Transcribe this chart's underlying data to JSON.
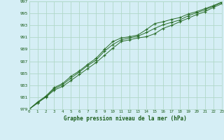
{
  "xlabel": "Graphe pression niveau de la mer (hPa)",
  "ylim": [
    979,
    997
  ],
  "xlim": [
    0,
    23
  ],
  "yticks": [
    979,
    981,
    983,
    985,
    987,
    989,
    991,
    993,
    995,
    997
  ],
  "xticks": [
    0,
    1,
    2,
    3,
    4,
    5,
    6,
    7,
    8,
    9,
    10,
    11,
    12,
    13,
    14,
    15,
    16,
    17,
    18,
    19,
    20,
    21,
    22,
    23
  ],
  "line_color": "#2a6e2a",
  "bg_color": "#d5eef5",
  "grid_color": "#b0d8c8",
  "line1": [
    979.0,
    980.1,
    981.0,
    982.2,
    982.8,
    983.8,
    984.8,
    985.8,
    986.8,
    988.0,
    989.2,
    990.3,
    990.6,
    990.9,
    991.1,
    991.6,
    992.5,
    993.0,
    993.6,
    994.2,
    994.8,
    995.3,
    996.0,
    996.6
  ],
  "line2": [
    979.0,
    980.2,
    981.2,
    982.6,
    983.3,
    984.5,
    985.4,
    986.5,
    987.5,
    989.0,
    990.3,
    990.9,
    991.1,
    991.4,
    992.3,
    993.3,
    993.6,
    994.0,
    994.3,
    994.9,
    995.3,
    995.8,
    996.3,
    996.9
  ],
  "line3": [
    979.0,
    980.0,
    981.1,
    982.4,
    983.1,
    984.2,
    985.2,
    986.3,
    987.2,
    988.7,
    989.8,
    990.6,
    990.9,
    991.2,
    991.8,
    992.5,
    993.1,
    993.5,
    993.9,
    994.6,
    995.1,
    995.6,
    996.2,
    996.8
  ]
}
